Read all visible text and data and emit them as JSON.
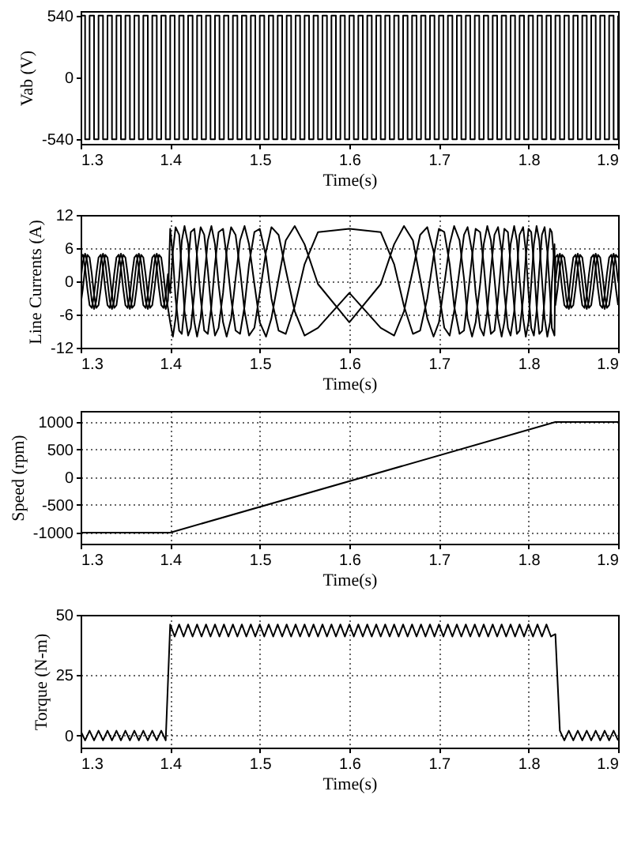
{
  "chart_data": [
    {
      "type": "step",
      "xlabel": "Time(s)",
      "ylabel": "Vab (V)",
      "xlim": [
        1.3,
        1.9
      ],
      "xticks": [
        1.3,
        1.4,
        1.5,
        1.6,
        1.7,
        1.8,
        1.9
      ],
      "ylim": [
        -580,
        580
      ],
      "yticks": [
        -540,
        0,
        540
      ],
      "x": [
        1.3,
        1.305,
        1.31,
        1.315,
        1.32,
        1.325,
        1.33,
        1.335,
        1.34,
        1.345,
        1.35,
        1.355,
        1.36,
        1.365,
        1.37,
        1.375,
        1.38,
        1.385,
        1.39,
        1.395,
        1.4,
        1.405,
        1.41,
        1.415,
        1.42,
        1.425,
        1.43,
        1.435,
        1.44,
        1.445,
        1.45,
        1.455,
        1.46,
        1.465,
        1.47,
        1.475,
        1.48,
        1.485,
        1.49,
        1.495,
        1.5,
        1.505,
        1.51,
        1.515,
        1.52,
        1.525,
        1.53,
        1.535,
        1.54,
        1.545,
        1.55,
        1.555,
        1.56,
        1.565,
        1.57,
        1.575,
        1.58,
        1.585,
        1.59,
        1.595,
        1.6,
        1.605,
        1.61,
        1.615,
        1.62,
        1.625,
        1.63,
        1.635,
        1.64,
        1.645,
        1.65,
        1.655,
        1.66,
        1.665,
        1.67,
        1.675,
        1.68,
        1.685,
        1.69,
        1.695,
        1.7,
        1.705,
        1.71,
        1.715,
        1.72,
        1.725,
        1.73,
        1.735,
        1.74,
        1.745,
        1.75,
        1.755,
        1.76,
        1.765,
        1.77,
        1.775,
        1.78,
        1.785,
        1.79,
        1.795,
        1.8,
        1.805,
        1.81,
        1.815,
        1.82,
        1.825,
        1.83,
        1.835,
        1.84,
        1.845,
        1.85,
        1.855,
        1.86,
        1.865,
        1.87,
        1.875,
        1.88,
        1.885,
        1.89,
        1.895,
        1.9
      ],
      "series": [
        {
          "color": "#000000",
          "values": [
            540,
            -540,
            540,
            -540,
            540,
            -540,
            540,
            -540,
            540,
            -540,
            540,
            -540,
            540,
            -540,
            540,
            -540,
            540,
            -540,
            540,
            -540,
            540,
            -540,
            540,
            -540,
            540,
            -540,
            540,
            -540,
            540,
            -540,
            540,
            -540,
            540,
            -540,
            540,
            -540,
            540,
            -540,
            540,
            -540,
            540,
            -540,
            540,
            -540,
            540,
            -540,
            540,
            -540,
            540,
            -540,
            540,
            -540,
            540,
            -540,
            540,
            -540,
            540,
            -540,
            540,
            -540,
            540,
            -540,
            540,
            -540,
            540,
            -540,
            540,
            -540,
            540,
            -540,
            540,
            -540,
            540,
            -540,
            540,
            -540,
            540,
            -540,
            540,
            -540,
            540,
            -540,
            540,
            -540,
            540,
            -540,
            540,
            -540,
            540,
            -540,
            540,
            -540,
            540,
            -540,
            540,
            -540,
            540,
            -540,
            540,
            -540,
            540,
            -540,
            540,
            -540,
            540,
            -540,
            540,
            -540,
            540,
            -540,
            540,
            -540,
            540,
            -540,
            540,
            -540,
            540,
            -540,
            540,
            -540,
            540
          ]
        }
      ]
    },
    {
      "type": "line",
      "xlabel": "Time(s)",
      "ylabel": "Line Currents (A)",
      "xlim": [
        1.3,
        1.9
      ],
      "xticks": [
        1.3,
        1.4,
        1.5,
        1.6,
        1.7,
        1.8,
        1.9
      ],
      "ylim": [
        -12,
        12
      ],
      "yticks": [
        -12,
        -6,
        0,
        6,
        12
      ],
      "grid": true,
      "x": [
        1.3,
        1.3025,
        1.305,
        1.3075,
        1.31,
        1.3125,
        1.315,
        1.3175,
        1.32,
        1.3225,
        1.325,
        1.3275,
        1.33,
        1.3325,
        1.335,
        1.3375,
        1.34,
        1.3425,
        1.345,
        1.3475,
        1.35,
        1.3525,
        1.355,
        1.3575,
        1.36,
        1.3625,
        1.365,
        1.3675,
        1.37,
        1.3725,
        1.375,
        1.3775,
        1.38,
        1.3825,
        1.385,
        1.3875,
        1.39,
        1.3925,
        1.395,
        1.3975,
        1.4,
        1.403,
        1.406,
        1.41,
        1.413,
        1.416,
        1.42,
        1.423,
        1.427,
        1.43,
        1.434,
        1.438,
        1.442,
        1.446,
        1.45,
        1.454,
        1.459,
        1.463,
        1.468,
        1.473,
        1.478,
        1.483,
        1.488,
        1.494,
        1.5,
        1.507,
        1.513,
        1.521,
        1.529,
        1.539,
        1.55,
        1.565,
        1.6,
        1.635,
        1.65,
        1.661,
        1.671,
        1.679,
        1.687,
        1.694,
        1.7,
        1.706,
        1.712,
        1.717,
        1.723,
        1.728,
        1.732,
        1.737,
        1.741,
        1.746,
        1.75,
        1.754,
        1.758,
        1.762,
        1.766,
        1.77,
        1.773,
        1.777,
        1.78,
        1.784,
        1.787,
        1.79,
        1.794,
        1.797,
        1.8,
        1.803,
        1.806,
        1.809,
        1.812,
        1.815,
        1.818,
        1.821,
        1.824,
        1.826,
        1.829,
        1.83,
        1.8325,
        1.835,
        1.8375,
        1.84,
        1.8425,
        1.845,
        1.8475,
        1.85,
        1.8525,
        1.855,
        1.8575,
        1.86,
        1.8625,
        1.865,
        1.8675,
        1.87,
        1.8725,
        1.875,
        1.8775,
        1.88,
        1.8825,
        1.885,
        1.8875,
        1.89,
        1.8925,
        1.895,
        1.8975,
        1.9
      ],
      "series": [
        {
          "color": "#000000",
          "values": [
            0,
            3.5,
            5,
            3.5,
            0,
            -3.5,
            -5,
            -3.5,
            0,
            3.5,
            5,
            3.5,
            0,
            -3.5,
            -5,
            -3.5,
            0,
            3.5,
            5,
            3.5,
            0,
            -3.5,
            -5,
            -3.5,
            0,
            3.5,
            5,
            3.5,
            0,
            -3.5,
            -5,
            -3.5,
            0,
            3.5,
            5,
            3.5,
            0,
            -3.5,
            -5,
            -3.5,
            9.5,
            4.5,
            -3.1,
            -8.9,
            -9.5,
            -4.5,
            3.1,
            8.9,
            9.5,
            4.5,
            -3.1,
            -8.9,
            -9.5,
            -4.5,
            3.1,
            8.9,
            9.5,
            4.5,
            -3.1,
            -8.9,
            -9.5,
            -4.5,
            3.1,
            8.9,
            9.5,
            4.5,
            -3.1,
            -8.9,
            -9.5,
            -4.5,
            3.1,
            8.9,
            9.5,
            8.9,
            3.1,
            -4.5,
            -9.5,
            -8.9,
            -3.1,
            4.5,
            9.5,
            8.9,
            3.1,
            -4.5,
            -9.5,
            -8.9,
            -3.1,
            4.5,
            9.5,
            8.9,
            3.1,
            -4.5,
            -9.5,
            -8.9,
            -3.1,
            4.5,
            9.5,
            8.9,
            3.1,
            -4.5,
            -9.5,
            -8.9,
            -3.1,
            4.5,
            9.5,
            8.9,
            3.1,
            -4.5,
            -9.5,
            -8.9,
            -3.1,
            4.5,
            9.5,
            8.9,
            3.1,
            0,
            3.5,
            5,
            3.5,
            0,
            -3.5,
            -5,
            -3.5,
            0,
            3.5,
            5,
            3.5,
            0,
            -3.5,
            -5,
            -3.5,
            0,
            3.5,
            5,
            3.5,
            0,
            -3.5,
            -5,
            -3.5,
            0,
            3.5,
            5,
            3.5,
            0
          ]
        },
        {
          "color": "#000000",
          "values": [
            -4.3,
            -1.3,
            2.5,
            4.8,
            4.3,
            1.3,
            -2.5,
            -4.8,
            -4.3,
            -1.3,
            2.5,
            4.8,
            4.3,
            1.3,
            -2.5,
            -4.8,
            -4.3,
            -1.3,
            2.5,
            4.8,
            4.3,
            1.3,
            -2.5,
            -4.8,
            -4.3,
            -1.3,
            2.5,
            4.8,
            4.3,
            1.3,
            -2.5,
            -4.8,
            -4.3,
            -1.3,
            2.5,
            4.8,
            4.3,
            1.3,
            -2.5,
            -4.8,
            -7.4,
            -10,
            -6.7,
            0.5,
            7.4,
            10,
            6.7,
            -0.5,
            -7.4,
            -10,
            -6.7,
            0.5,
            7.4,
            10,
            6.7,
            -0.5,
            -7.4,
            -10,
            -6.7,
            0.5,
            7.4,
            10,
            6.7,
            -0.5,
            -7.4,
            -10,
            -6.7,
            0.5,
            7.4,
            10,
            6.7,
            -0.5,
            -7.4,
            -0.5,
            6.7,
            10,
            7.4,
            0.5,
            -6.7,
            -10,
            -7.4,
            -0.5,
            6.7,
            10,
            7.4,
            0.5,
            -6.7,
            -10,
            -7.4,
            -0.5,
            6.7,
            10,
            7.4,
            0.5,
            -6.7,
            -10,
            -7.4,
            -0.5,
            6.7,
            10,
            7.4,
            0.5,
            -6.7,
            -10,
            -7.4,
            -0.5,
            6.7,
            10,
            7.4,
            0.5,
            -6.7,
            -10,
            -7.4,
            -0.5,
            6.7,
            -4.3,
            -1.3,
            2.5,
            4.8,
            4.3,
            1.3,
            -2.5,
            -4.8,
            -4.3,
            -1.3,
            2.5,
            4.8,
            4.3,
            1.3,
            -2.5,
            -4.8,
            -4.3,
            -1.3,
            2.5,
            4.8,
            4.3,
            1.3,
            -2.5,
            -4.8,
            -4.3,
            -1.3,
            2.5,
            4.8,
            4.3
          ]
        },
        {
          "color": "#000000",
          "values": [
            4.3,
            4.8,
            2.5,
            -1.3,
            -4.3,
            -4.8,
            -2.5,
            1.3,
            4.3,
            4.8,
            2.5,
            -1.3,
            -4.3,
            -4.8,
            -2.5,
            1.3,
            4.3,
            4.8,
            2.5,
            -1.3,
            -4.3,
            -4.8,
            -2.5,
            1.3,
            4.3,
            4.8,
            2.5,
            -1.3,
            -4.3,
            -4.8,
            -2.5,
            1.3,
            4.3,
            4.8,
            2.5,
            -1.3,
            -4.3,
            -4.8,
            -2.5,
            1.3,
            -2.1,
            5.4,
            9.8,
            8.4,
            2.1,
            -5.4,
            -9.8,
            -8.4,
            -2.1,
            5.4,
            9.8,
            8.4,
            2.1,
            -5.4,
            -9.8,
            -8.4,
            -2.1,
            5.4,
            9.8,
            8.4,
            2.1,
            -5.4,
            -9.8,
            -8.4,
            -2.1,
            5.4,
            9.8,
            8.4,
            2.1,
            -5.4,
            -9.8,
            -8.4,
            -2.1,
            -8.4,
            -9.8,
            -5.4,
            2.1,
            8.4,
            9.8,
            5.4,
            -2.1,
            -8.4,
            -9.8,
            -5.4,
            2.1,
            8.4,
            9.8,
            5.4,
            -2.1,
            -8.4,
            -9.8,
            -5.4,
            2.1,
            8.4,
            9.8,
            5.4,
            -2.1,
            -8.4,
            -9.8,
            -5.4,
            2.1,
            8.4,
            9.8,
            5.4,
            -2.1,
            -8.4,
            -9.8,
            -5.4,
            2.1,
            8.4,
            9.8,
            5.4,
            -2.1,
            -8.4,
            -9.8,
            4.3,
            4.8,
            2.5,
            -1.3,
            -4.3,
            -4.8,
            -2.5,
            1.3,
            4.3,
            4.8,
            2.5,
            -1.3,
            -4.3,
            -4.8,
            -2.5,
            1.3,
            4.3,
            4.8,
            2.5,
            -1.3,
            -4.3,
            -4.8,
            -2.5,
            1.3,
            4.3,
            4.8,
            2.5,
            -1.3,
            -4.3
          ]
        }
      ]
    },
    {
      "type": "line",
      "xlabel": "Time(s)",
      "ylabel": "Speed (rpm)",
      "xlim": [
        1.3,
        1.9
      ],
      "xticks": [
        1.3,
        1.4,
        1.5,
        1.6,
        1.7,
        1.8,
        1.9
      ],
      "ylim": [
        -1200,
        1200
      ],
      "yticks": [
        -1000,
        -500,
        0,
        500,
        1000
      ],
      "grid": true,
      "x": [
        1.3,
        1.4,
        1.83,
        1.9
      ],
      "series": [
        {
          "color": "#000000",
          "values": [
            -1000,
            -1000,
            1000,
            1000
          ]
        }
      ]
    },
    {
      "type": "line",
      "xlabel": "Time(s)",
      "ylabel": "Torque (N-m)",
      "xlim": [
        1.3,
        1.9
      ],
      "xticks": [
        1.3,
        1.4,
        1.5,
        1.6,
        1.7,
        1.8,
        1.9
      ],
      "ylim": [
        -5,
        50
      ],
      "yticks": [
        0,
        25,
        50
      ],
      "grid": true,
      "x": [
        1.3,
        1.305,
        1.31,
        1.315,
        1.32,
        1.325,
        1.33,
        1.335,
        1.34,
        1.345,
        1.35,
        1.355,
        1.36,
        1.365,
        1.37,
        1.375,
        1.38,
        1.385,
        1.39,
        1.395,
        1.4,
        1.405,
        1.41,
        1.415,
        1.42,
        1.425,
        1.43,
        1.435,
        1.44,
        1.445,
        1.45,
        1.455,
        1.46,
        1.465,
        1.47,
        1.475,
        1.48,
        1.485,
        1.49,
        1.495,
        1.5,
        1.505,
        1.51,
        1.515,
        1.52,
        1.525,
        1.53,
        1.535,
        1.54,
        1.545,
        1.55,
        1.555,
        1.56,
        1.565,
        1.57,
        1.575,
        1.58,
        1.585,
        1.59,
        1.595,
        1.6,
        1.605,
        1.61,
        1.615,
        1.62,
        1.625,
        1.63,
        1.635,
        1.64,
        1.645,
        1.65,
        1.655,
        1.66,
        1.665,
        1.67,
        1.675,
        1.68,
        1.685,
        1.69,
        1.695,
        1.7,
        1.705,
        1.71,
        1.715,
        1.72,
        1.725,
        1.73,
        1.735,
        1.74,
        1.745,
        1.75,
        1.755,
        1.76,
        1.765,
        1.77,
        1.775,
        1.78,
        1.785,
        1.79,
        1.795,
        1.8,
        1.805,
        1.81,
        1.815,
        1.82,
        1.825,
        1.83,
        1.835,
        1.84,
        1.845,
        1.85,
        1.855,
        1.86,
        1.865,
        1.87,
        1.875,
        1.88,
        1.885,
        1.89,
        1.895,
        1.9
      ],
      "series": [
        {
          "color": "#000000",
          "values": [
            2,
            -2,
            2,
            -2,
            2,
            -2,
            2,
            -2,
            2,
            -2,
            2,
            -2,
            2,
            -2,
            2,
            -2,
            2,
            -2,
            2,
            -2,
            46,
            41,
            46,
            41,
            46,
            41,
            46,
            41,
            46,
            41,
            46,
            41,
            46,
            41,
            46,
            41,
            46,
            41,
            46,
            41,
            46,
            41,
            46,
            41,
            46,
            41,
            46,
            41,
            46,
            41,
            46,
            41,
            46,
            41,
            46,
            41,
            46,
            41,
            46,
            41,
            46,
            41,
            46,
            41,
            46,
            41,
            46,
            41,
            46,
            41,
            46,
            41,
            46,
            41,
            46,
            41,
            46,
            41,
            46,
            41,
            46,
            41,
            46,
            41,
            46,
            41,
            46,
            41,
            46,
            41,
            46,
            41,
            46,
            41,
            46,
            41,
            46,
            41,
            46,
            41,
            46,
            41,
            46,
            41,
            46,
            41,
            42,
            2,
            -2,
            2,
            -2,
            2,
            -2,
            2,
            -2,
            2,
            -2,
            2,
            -2,
            2,
            -2
          ]
        }
      ]
    }
  ]
}
